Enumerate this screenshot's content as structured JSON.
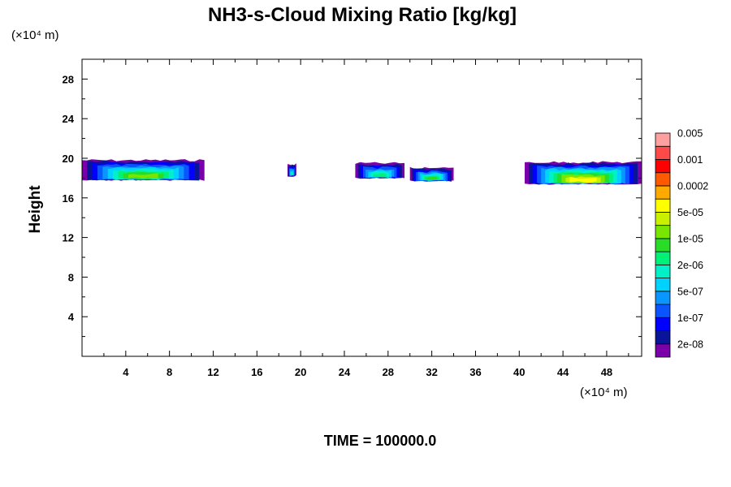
{
  "chart_data": {
    "type": "heatmap",
    "title": "NH3-s-Cloud Mixing Ratio [kg/kg]",
    "xlabel": "",
    "ylabel": "Height",
    "x_unit": "(×10⁴ m)",
    "y_unit": "(×10⁴ m)",
    "x_range": [
      0,
      51.2
    ],
    "y_range": [
      0,
      30
    ],
    "x_ticks": [
      "4",
      "8",
      "12",
      "16",
      "20",
      "24",
      "28",
      "32",
      "36",
      "40",
      "44",
      "48"
    ],
    "y_ticks": [
      "4",
      "8",
      "12",
      "16",
      "20",
      "24",
      "28"
    ],
    "time_label": "TIME = 100000.0",
    "colorbar": {
      "colors": [
        "#7a00aa",
        "#0a1499",
        "#0000ff",
        "#0a55ff",
        "#0a96ff",
        "#00d2ff",
        "#00f0c8",
        "#00f078",
        "#28dc28",
        "#78e600",
        "#c8f000",
        "#ffff00",
        "#ffaa00",
        "#ff5a00",
        "#ff0000",
        "#ff4a4a",
        "#ffa0a0"
      ],
      "labels": [
        "2e-08",
        "1e-07",
        "5e-07",
        "2e-06",
        "1e-05",
        "5e-05",
        "0.0002",
        "0.001",
        "0.005"
      ]
    },
    "cloud_regions": [
      {
        "x_start": 0.0,
        "x_end": 11.2,
        "y_bottom": 17.8,
        "y_top": 19.8,
        "max_level": 9
      },
      {
        "x_start": 18.8,
        "x_end": 19.6,
        "y_bottom": 18.2,
        "y_top": 19.4,
        "max_level": 6
      },
      {
        "x_start": 25.0,
        "x_end": 29.5,
        "y_bottom": 18.0,
        "y_top": 19.5,
        "max_level": 7
      },
      {
        "x_start": 30.0,
        "x_end": 34.0,
        "y_bottom": 17.7,
        "y_top": 19.0,
        "max_level": 8
      },
      {
        "x_start": 40.5,
        "x_end": 51.2,
        "y_bottom": 17.4,
        "y_top": 19.6,
        "max_level": 11
      }
    ]
  }
}
